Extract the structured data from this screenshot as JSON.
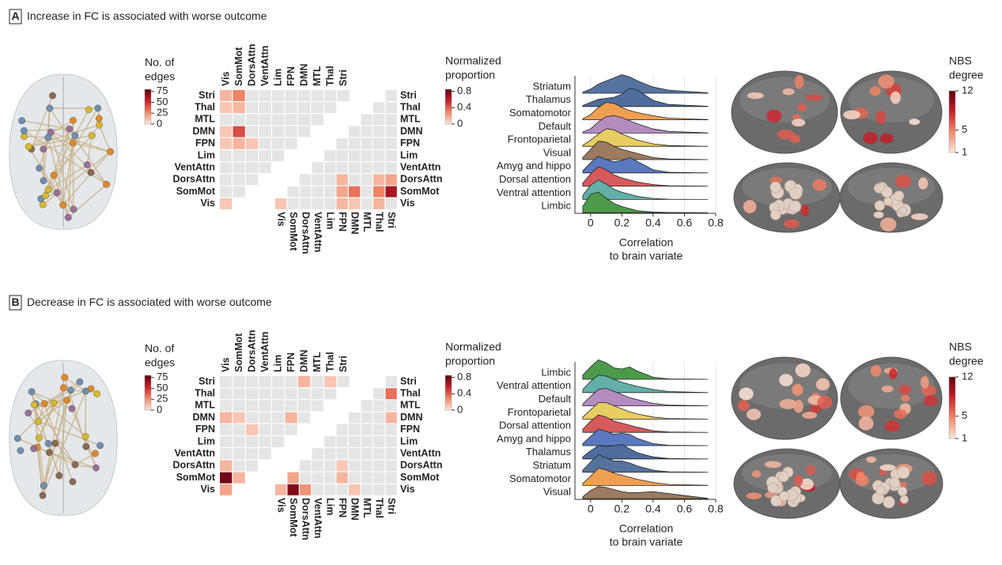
{
  "chart_data": [
    {
      "type": "figure-panel",
      "label": "A",
      "title": "Increase in FC is associated with worse outcome",
      "colormap": [
        "#fde6da",
        "#f08a6a",
        "#c8202a",
        "#5e0010"
      ],
      "edges_colorbar": {
        "title": [
          "No. of",
          "edges"
        ],
        "lim": [
          0,
          80
        ],
        "ticks": [
          0,
          25,
          50,
          75
        ]
      },
      "matrix": {
        "regions": [
          "Vis",
          "SomMot",
          "DorsAttn",
          "VentAttn",
          "Lim",
          "FPN",
          "DMN",
          "MTL",
          "Thal",
          "Stri"
        ],
        "colors": [
          "#b4977e",
          "#efab64",
          "#e0787a",
          "#74bcb4",
          "#5f9e47",
          "#e8d36a",
          "#c49fc8",
          "#6e9cc4",
          "#4f86b8",
          "#4f86b8"
        ],
        "colorbar": {
          "title": [
            "Normalized",
            "proportion"
          ],
          "lim": [
            0,
            0.85
          ],
          "ticks": [
            0,
            0.4,
            0.8
          ]
        },
        "upper": [
          [
            0.15,
            0.3,
            0,
            0,
            0,
            0,
            0,
            0,
            0,
            0
          ],
          [
            0.1,
            0.15,
            0,
            0,
            0,
            0,
            0,
            0,
            0
          ],
          [
            0,
            0,
            0,
            0,
            0,
            0,
            0,
            0
          ],
          [
            0.1,
            0.45,
            0,
            0,
            0,
            0,
            0
          ],
          [
            0.1,
            0.15,
            0.1,
            0,
            0,
            0
          ],
          [
            0,
            0,
            0,
            0,
            0
          ],
          [
            0,
            0,
            0,
            0
          ],
          [
            0,
            0,
            0
          ],
          [
            0,
            0
          ],
          [
            0.1
          ]
        ],
        "lower": [
          [
            0
          ],
          [
            0,
            0
          ],
          [
            0,
            0,
            0
          ],
          [
            0,
            0,
            0,
            0
          ],
          [
            0,
            0,
            0,
            0,
            0
          ],
          [
            0,
            0,
            0,
            0,
            0,
            0
          ],
          [
            0,
            0,
            0,
            0,
            0,
            0,
            0
          ],
          [
            0,
            0,
            0,
            0.15,
            0,
            0,
            0.15,
            0.2
          ],
          [
            0,
            0,
            0,
            0,
            0.2,
            0.35,
            0,
            0.3,
            0.65
          ],
          [
            0.1,
            0,
            0,
            0,
            0,
            0.15,
            0.1,
            0,
            0.15,
            0
          ]
        ]
      },
      "ridge": {
        "categories": [
          "Striatum",
          "Thalamus",
          "Somatomotor",
          "Default",
          "Frontoparietal",
          "Visual",
          "Amyg and hippo",
          "Dorsal attention",
          "Ventral attention",
          "Limbic"
        ],
        "colors": [
          "#56739f",
          "#4f6c9c",
          "#ef9f52",
          "#b38cc0",
          "#e8cd62",
          "#9b7b61",
          "#5a79bf",
          "#d65a5c",
          "#62b0a8",
          "#4e9a4c"
        ],
        "density_x": [
          -0.05,
          0,
          0.05,
          0.1,
          0.15,
          0.2,
          0.25,
          0.3,
          0.4,
          0.5,
          0.75
        ],
        "densities": [
          [
            0.05,
            0.2,
            0.45,
            0.6,
            0.75,
            0.9,
            0.8,
            0.6,
            0.3,
            0.15,
            0.02
          ],
          [
            0.05,
            0.2,
            0.35,
            0.4,
            0.45,
            0.6,
            0.9,
            0.8,
            0.3,
            0.1,
            0.01
          ],
          [
            0.05,
            0.25,
            0.6,
            0.85,
            0.8,
            0.6,
            0.45,
            0.35,
            0.2,
            0.08,
            0.01
          ],
          [
            0.05,
            0.2,
            0.55,
            0.8,
            0.85,
            0.75,
            0.6,
            0.45,
            0.2,
            0.08,
            0.01
          ],
          [
            0.05,
            0.3,
            0.6,
            0.85,
            0.8,
            0.6,
            0.45,
            0.3,
            0.12,
            0.04,
            0
          ],
          [
            0.1,
            0.5,
            0.9,
            0.85,
            0.65,
            0.5,
            0.4,
            0.3,
            0.1,
            0.03,
            0
          ],
          [
            0.1,
            0.5,
            0.8,
            0.65,
            0.55,
            0.6,
            0.75,
            0.55,
            0.15,
            0.03,
            0
          ],
          [
            0.15,
            0.6,
            0.95,
            0.8,
            0.55,
            0.4,
            0.3,
            0.2,
            0.08,
            0.02,
            0
          ],
          [
            0.2,
            0.7,
            0.95,
            0.75,
            0.5,
            0.35,
            0.25,
            0.15,
            0.05,
            0.01,
            0
          ],
          [
            0.3,
            0.9,
            1.0,
            0.7,
            0.45,
            0.3,
            0.2,
            0.1,
            0.03,
            0.01,
            0
          ]
        ],
        "xlim": [
          -0.1,
          0.8
        ],
        "xticks": [
          0,
          0.2,
          0.4,
          0.6,
          0.8
        ],
        "xlabel": [
          "Correlation",
          "to brain variate"
        ]
      },
      "nbs_colorbar": {
        "title": [
          "NBS",
          "degree"
        ],
        "lim": [
          1,
          12
        ],
        "ticks": [
          1,
          5,
          12
        ]
      }
    },
    {
      "type": "figure-panel",
      "label": "B",
      "title": "Decrease in FC is associated with worse outcome",
      "colormap": [
        "#fde6da",
        "#f08a6a",
        "#c8202a",
        "#5e0010"
      ],
      "edges_colorbar": {
        "title": [
          "No. of",
          "edges"
        ],
        "lim": [
          0,
          80
        ],
        "ticks": [
          0,
          25,
          50,
          75
        ]
      },
      "matrix": {
        "regions": [
          "Vis",
          "SomMot",
          "DorsAttn",
          "VentAttn",
          "Lim",
          "FPN",
          "DMN",
          "MTL",
          "Thal",
          "Stri"
        ],
        "colors": [
          "#b4977e",
          "#efab64",
          "#e0787a",
          "#74bcb4",
          "#5f9e47",
          "#e8d36a",
          "#c49fc8",
          "#6e9cc4",
          "#4f86b8",
          "#4f86b8"
        ],
        "colorbar": {
          "title": [
            "Normalized",
            "proportion"
          ],
          "lim": [
            0,
            0.85
          ],
          "ticks": [
            0,
            0.4,
            0.8
          ]
        },
        "upper": [
          [
            0,
            0,
            0,
            0,
            0,
            0,
            0.15,
            0,
            0.1,
            0
          ],
          [
            0,
            0,
            0,
            0,
            0,
            0,
            0,
            0,
            0
          ],
          [
            0,
            0,
            0,
            0,
            0,
            0,
            0,
            0
          ],
          [
            0.15,
            0.1,
            0,
            0,
            0,
            0.15,
            0
          ],
          [
            0,
            0,
            0.1,
            0,
            0,
            0
          ],
          [
            0,
            0,
            0,
            0,
            0
          ],
          [
            0,
            0,
            0,
            0
          ],
          [
            0.15,
            0,
            0
          ],
          [
            0.8,
            0.15
          ],
          [
            0.2
          ]
        ],
        "lower": [
          [
            0
          ],
          [
            0,
            0.35
          ],
          [
            0,
            0,
            0
          ],
          [
            0,
            0,
            0,
            0.15
          ],
          [
            0,
            0,
            0,
            0,
            0
          ],
          [
            0,
            0,
            0,
            0,
            0,
            0
          ],
          [
            0,
            0,
            0,
            0,
            0,
            0,
            0
          ],
          [
            0,
            0,
            0,
            0.1,
            0,
            0,
            0,
            0
          ],
          [
            0.2,
            0,
            0,
            0,
            0.15,
            0,
            0,
            0,
            0
          ],
          [
            0.15,
            0.75,
            0.25,
            0,
            0,
            0,
            0.1,
            0,
            0,
            0
          ]
        ]
      },
      "ridge": {
        "categories": [
          "Limbic",
          "Ventral attention",
          "Default",
          "Frontoparietal",
          "Dorsal attention",
          "Amyg and hippo",
          "Thalamus",
          "Striatum",
          "Somatomotor",
          "Visual"
        ],
        "colors": [
          "#4e9a4c",
          "#62b0a8",
          "#b38cc0",
          "#e8cd62",
          "#d65a5c",
          "#5a79bf",
          "#4f6c9c",
          "#56739f",
          "#ef9f52",
          "#9b7b61"
        ],
        "density_x": [
          -0.05,
          0,
          0.05,
          0.1,
          0.15,
          0.2,
          0.25,
          0.3,
          0.4,
          0.5,
          0.75
        ],
        "densities": [
          [
            0.2,
            0.6,
            0.95,
            0.8,
            0.55,
            0.5,
            0.6,
            0.4,
            0.1,
            0.02,
            0
          ],
          [
            0.15,
            0.55,
            0.85,
            0.8,
            0.65,
            0.5,
            0.4,
            0.3,
            0.15,
            0.05,
            0
          ],
          [
            0.1,
            0.45,
            0.8,
            0.85,
            0.7,
            0.55,
            0.4,
            0.3,
            0.12,
            0.04,
            0
          ],
          [
            0.1,
            0.45,
            0.8,
            0.8,
            0.65,
            0.5,
            0.35,
            0.25,
            0.1,
            0.03,
            0
          ],
          [
            0.15,
            0.55,
            0.85,
            0.75,
            0.55,
            0.45,
            0.35,
            0.25,
            0.08,
            0.02,
            0
          ],
          [
            0.1,
            0.45,
            0.8,
            0.7,
            0.55,
            0.6,
            0.55,
            0.35,
            0.1,
            0.02,
            0
          ],
          [
            0.1,
            0.4,
            0.65,
            0.6,
            0.65,
            0.7,
            0.5,
            0.3,
            0.1,
            0.02,
            0
          ],
          [
            0.1,
            0.5,
            0.85,
            0.7,
            0.55,
            0.55,
            0.45,
            0.3,
            0.1,
            0.02,
            0
          ],
          [
            0.1,
            0.45,
            0.85,
            0.75,
            0.6,
            0.5,
            0.4,
            0.3,
            0.15,
            0.05,
            0.01
          ],
          [
            0.1,
            0.4,
            0.6,
            0.55,
            0.45,
            0.35,
            0.3,
            0.3,
            0.35,
            0.25,
            0.02
          ]
        ],
        "xlim": [
          -0.1,
          0.8
        ],
        "xticks": [
          0,
          0.2,
          0.4,
          0.6,
          0.8
        ],
        "xlabel": [
          "Correlation",
          "to brain variate"
        ]
      },
      "nbs_colorbar": {
        "title": [
          "NBS",
          "degree"
        ],
        "lim": [
          1,
          12
        ],
        "ticks": [
          1,
          5,
          12
        ]
      }
    }
  ]
}
